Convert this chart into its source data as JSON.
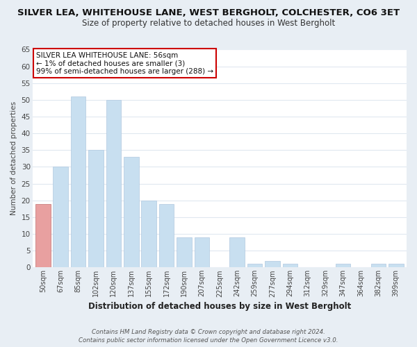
{
  "title": "SILVER LEA, WHITEHOUSE LANE, WEST BERGHOLT, COLCHESTER, CO6 3ET",
  "subtitle": "Size of property relative to detached houses in West Bergholt",
  "xlabel": "Distribution of detached houses by size in West Bergholt",
  "ylabel": "Number of detached properties",
  "bar_labels": [
    "50sqm",
    "67sqm",
    "85sqm",
    "102sqm",
    "120sqm",
    "137sqm",
    "155sqm",
    "172sqm",
    "190sqm",
    "207sqm",
    "225sqm",
    "242sqm",
    "259sqm",
    "277sqm",
    "294sqm",
    "312sqm",
    "329sqm",
    "347sqm",
    "364sqm",
    "382sqm",
    "399sqm"
  ],
  "bar_heights": [
    19,
    30,
    51,
    35,
    50,
    33,
    20,
    19,
    9,
    9,
    0,
    9,
    1,
    2,
    1,
    0,
    0,
    1,
    0,
    1,
    1
  ],
  "highlight_bar_index": 0,
  "bar_color": "#c8dff0",
  "highlight_color": "#e8a0a0",
  "ylim": [
    0,
    65
  ],
  "yticks": [
    0,
    5,
    10,
    15,
    20,
    25,
    30,
    35,
    40,
    45,
    50,
    55,
    60,
    65
  ],
  "annotation_title": "SILVER LEA WHITEHOUSE LANE: 56sqm",
  "annotation_line1": "← 1% of detached houses are smaller (3)",
  "annotation_line2": "99% of semi-detached houses are larger (288) →",
  "footer_line1": "Contains HM Land Registry data © Crown copyright and database right 2024.",
  "footer_line2": "Contains public sector information licensed under the Open Government Licence v3.0.",
  "background_color": "#e8eef4",
  "plot_bg_color": "#ffffff",
  "grid_color": "#e0e8f0",
  "title_fontsize": 10,
  "subtitle_fontsize": 9
}
